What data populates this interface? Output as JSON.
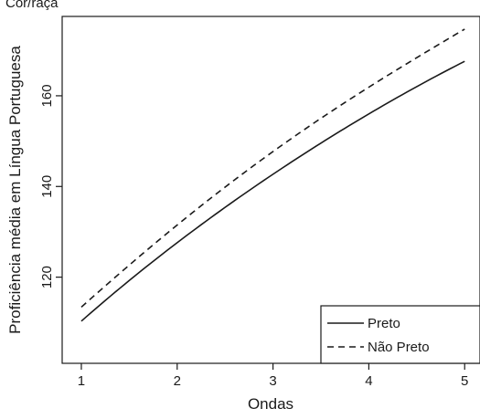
{
  "top_fragment": "Cor/raça",
  "chart_data": {
    "type": "line",
    "xlabel": "Ondas",
    "ylabel": "Proficiência média em Língua Portuguesa",
    "x": [
      1,
      2,
      3,
      4,
      5
    ],
    "xticks": [
      "1",
      "2",
      "3",
      "4",
      "5"
    ],
    "yticks": [
      "120",
      "140",
      "160"
    ],
    "xlim": [
      0.8,
      5.16
    ],
    "ylim": [
      101,
      177.5
    ],
    "legend_position": "bottom-right",
    "series": [
      {
        "name": "Preto",
        "values": [
          110.3,
          127.6,
          142.7,
          156.0,
          167.6
        ],
        "style": "solid",
        "color": "#1a1a1a"
      },
      {
        "name": "Não Preto",
        "values": [
          113.4,
          131.5,
          147.7,
          161.9,
          174.7
        ],
        "style": "dashed",
        "color": "#1a1a1a"
      }
    ]
  }
}
